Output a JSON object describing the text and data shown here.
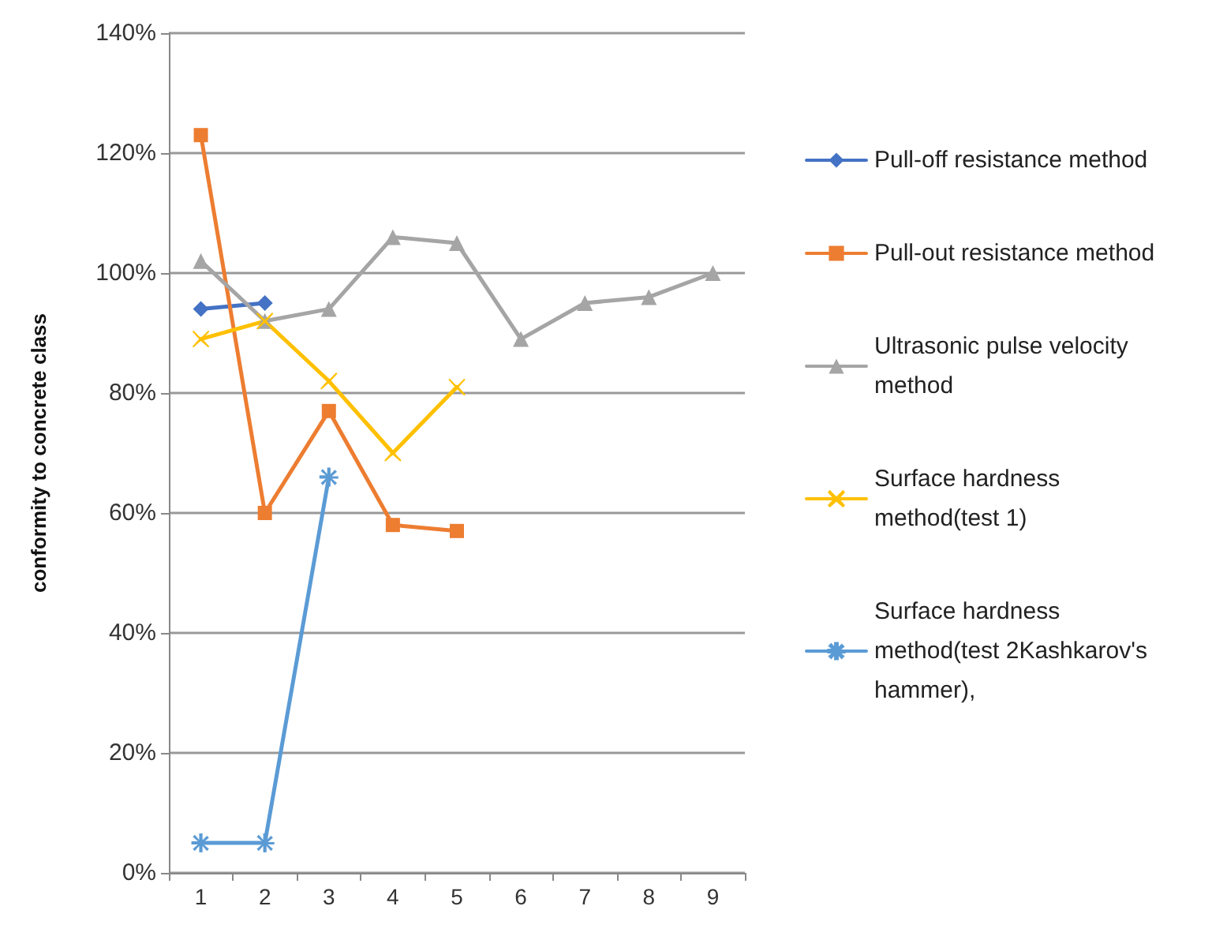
{
  "chart_data": {
    "type": "line",
    "ylabel": "conformity to concrete class",
    "categories": [
      "1",
      "2",
      "3",
      "4",
      "5",
      "6",
      "7",
      "8",
      "9"
    ],
    "ylim": [
      0,
      140
    ],
    "yticks": [
      {
        "value": 0,
        "label": "0%"
      },
      {
        "value": 20,
        "label": "20%"
      },
      {
        "value": 40,
        "label": "40%"
      },
      {
        "value": 60,
        "label": "60%"
      },
      {
        "value": 80,
        "label": "80%"
      },
      {
        "value": 100,
        "label": "100%"
      },
      {
        "value": 120,
        "label": "120%"
      },
      {
        "value": 140,
        "label": "140%"
      }
    ],
    "grid": "y",
    "legend": "right",
    "line_style": "solid",
    "series": [
      {
        "name": "Pull-off resistance method",
        "color": "#4472c4",
        "marker": "diamond",
        "values": [
          94,
          95,
          null,
          null,
          null,
          null,
          null,
          null,
          null
        ]
      },
      {
        "name": "Pull-out resistance method",
        "color": "#ed7d31",
        "marker": "square",
        "values": [
          123,
          60,
          77,
          58,
          57,
          null,
          null,
          null,
          null
        ]
      },
      {
        "name": "Ultrasonic pulse velocity method",
        "color": "#a5a5a5",
        "marker": "triangle",
        "values": [
          102,
          92,
          94,
          106,
          105,
          89,
          95,
          96,
          100
        ]
      },
      {
        "name": "Surface hardness method(test 1)",
        "color": "#ffc000",
        "marker": "cross",
        "values": [
          89,
          92,
          82,
          70,
          81,
          null,
          null,
          null,
          null
        ]
      },
      {
        "name": "Surface hardness method(test 2Kashkarov's hammer),",
        "color": "#5b9bd5",
        "marker": "star",
        "values": [
          5,
          5,
          66,
          null,
          null,
          null,
          null,
          null,
          null
        ]
      }
    ]
  }
}
